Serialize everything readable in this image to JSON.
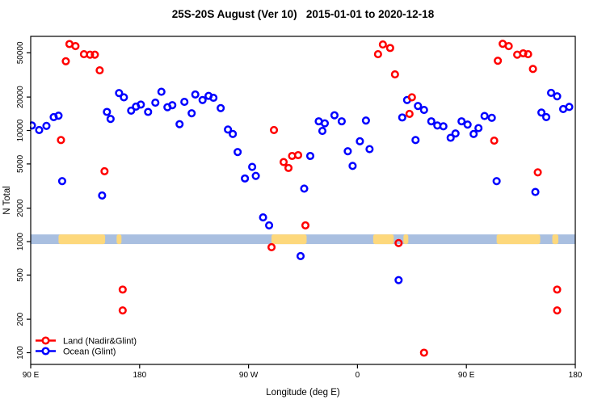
{
  "chart_data": {
    "type": "scatter",
    "title": "25S-20S August (Ver 10)   2015-01-01 to 2020-12-18",
    "xlabel": "Longitude (deg E)",
    "ylabel": "N Total",
    "x_axis": {
      "axis_range_deg": [
        90,
        540
      ],
      "major_ticks": [
        {
          "deg": 90,
          "label": "90 E"
        },
        {
          "deg": 180,
          "label": "180"
        },
        {
          "deg": 270,
          "label": "90 W"
        },
        {
          "deg": 360,
          "label": "0"
        },
        {
          "deg": 450,
          "label": "90 E"
        },
        {
          "deg": 540,
          "label": "180"
        }
      ]
    },
    "y_axis": {
      "scale": "log",
      "range": [
        85,
        65000
      ],
      "ticks": [
        {
          "value": 100,
          "label": "100"
        },
        {
          "value": 200,
          "label": "200"
        },
        {
          "value": 500,
          "label": "500"
        },
        {
          "value": 1000,
          "label": "1000"
        },
        {
          "value": 2000,
          "label": "2000"
        },
        {
          "value": 5000,
          "label": "5000"
        },
        {
          "value": 10000,
          "label": "10000"
        },
        {
          "value": 20000,
          "label": "20000"
        },
        {
          "value": 50000,
          "label": "50000"
        }
      ]
    },
    "strip": {
      "description": "land/ocean map band centered near N=1000",
      "value_top": 1160,
      "value_bottom": 950,
      "ocean_color": "#a9bfe0",
      "land_color": "#fdd87c",
      "land_segments_deg": [
        [
          113,
          151.5
        ],
        [
          161,
          165
        ],
        [
          289,
          318
        ],
        [
          373,
          390
        ],
        [
          398,
          402
        ],
        [
          475,
          511
        ],
        [
          521,
          526
        ]
      ]
    },
    "legend": [
      {
        "label": "Land (Nadir&Glint)",
        "color": "#ff0000"
      },
      {
        "label": "Ocean (Glint)",
        "color": "#0000ff"
      }
    ],
    "series": [
      {
        "name": "Land (Nadir&Glint)",
        "color": "#ff0000",
        "points": [
          [
            115,
            8200
          ],
          [
            119,
            42000
          ],
          [
            122,
            60000
          ],
          [
            127,
            57500
          ],
          [
            134,
            48600
          ],
          [
            139,
            48100
          ],
          [
            143,
            48100
          ],
          [
            147,
            34800
          ],
          [
            151,
            4300
          ],
          [
            166,
            370
          ],
          [
            166,
            240
          ],
          [
            289,
            890
          ],
          [
            291,
            10100
          ],
          [
            299,
            5200
          ],
          [
            303,
            4600
          ],
          [
            306,
            5900
          ],
          [
            311,
            6000
          ],
          [
            317,
            1400
          ],
          [
            377,
            48600
          ],
          [
            381,
            59400
          ],
          [
            387,
            55300
          ],
          [
            391,
            32000
          ],
          [
            394,
            970
          ],
          [
            403,
            14100
          ],
          [
            405,
            19900
          ],
          [
            415,
            100
          ],
          [
            473,
            8100
          ],
          [
            476,
            42400
          ],
          [
            480,
            60300
          ],
          [
            485,
            57500
          ],
          [
            492,
            48100
          ],
          [
            497,
            49500
          ],
          [
            501,
            48600
          ],
          [
            505,
            35800
          ],
          [
            509,
            4200
          ],
          [
            525,
            370
          ],
          [
            525,
            240
          ]
        ]
      },
      {
        "name": "Ocean (Glint)",
        "color": "#0000ff",
        "points": [
          [
            91,
            11100
          ],
          [
            97,
            10100
          ],
          [
            103,
            11000
          ],
          [
            109,
            13200
          ],
          [
            113,
            13600
          ],
          [
            116,
            3500
          ],
          [
            149,
            2600
          ],
          [
            153,
            14700
          ],
          [
            156,
            12700
          ],
          [
            163,
            21700
          ],
          [
            167,
            19900
          ],
          [
            173,
            15100
          ],
          [
            177,
            16400
          ],
          [
            181,
            17100
          ],
          [
            187,
            14700
          ],
          [
            193,
            17800
          ],
          [
            198,
            22300
          ],
          [
            203,
            16200
          ],
          [
            207,
            16900
          ],
          [
            213,
            11400
          ],
          [
            217,
            18100
          ],
          [
            223,
            14300
          ],
          [
            226,
            21100
          ],
          [
            232,
            18800
          ],
          [
            237,
            20500
          ],
          [
            241,
            19700
          ],
          [
            247,
            15900
          ],
          [
            253,
            10200
          ],
          [
            257,
            9300
          ],
          [
            261,
            6400
          ],
          [
            267,
            3700
          ],
          [
            273,
            4700
          ],
          [
            276,
            3900
          ],
          [
            282,
            1650
          ],
          [
            287,
            1400
          ],
          [
            313,
            740
          ],
          [
            316,
            3000
          ],
          [
            321,
            5900
          ],
          [
            328,
            12100
          ],
          [
            331,
            9900
          ],
          [
            333,
            11600
          ],
          [
            341,
            13700
          ],
          [
            347,
            12100
          ],
          [
            352,
            6500
          ],
          [
            356,
            4800
          ],
          [
            362,
            8000
          ],
          [
            367,
            12300
          ],
          [
            370,
            6800
          ],
          [
            394,
            450
          ],
          [
            397,
            13100
          ],
          [
            401,
            18800
          ],
          [
            408,
            8200
          ],
          [
            410,
            16600
          ],
          [
            415,
            15300
          ],
          [
            421,
            12100
          ],
          [
            426,
            11100
          ],
          [
            431,
            10900
          ],
          [
            437,
            8600
          ],
          [
            441,
            9400
          ],
          [
            446,
            12100
          ],
          [
            451,
            11300
          ],
          [
            456,
            9300
          ],
          [
            460,
            10500
          ],
          [
            465,
            13500
          ],
          [
            471,
            13000
          ],
          [
            475,
            3500
          ],
          [
            507,
            2800
          ],
          [
            512,
            14500
          ],
          [
            516,
            13200
          ],
          [
            520,
            21800
          ],
          [
            525,
            20300
          ],
          [
            530,
            15600
          ],
          [
            535,
            16300
          ]
        ]
      }
    ]
  }
}
